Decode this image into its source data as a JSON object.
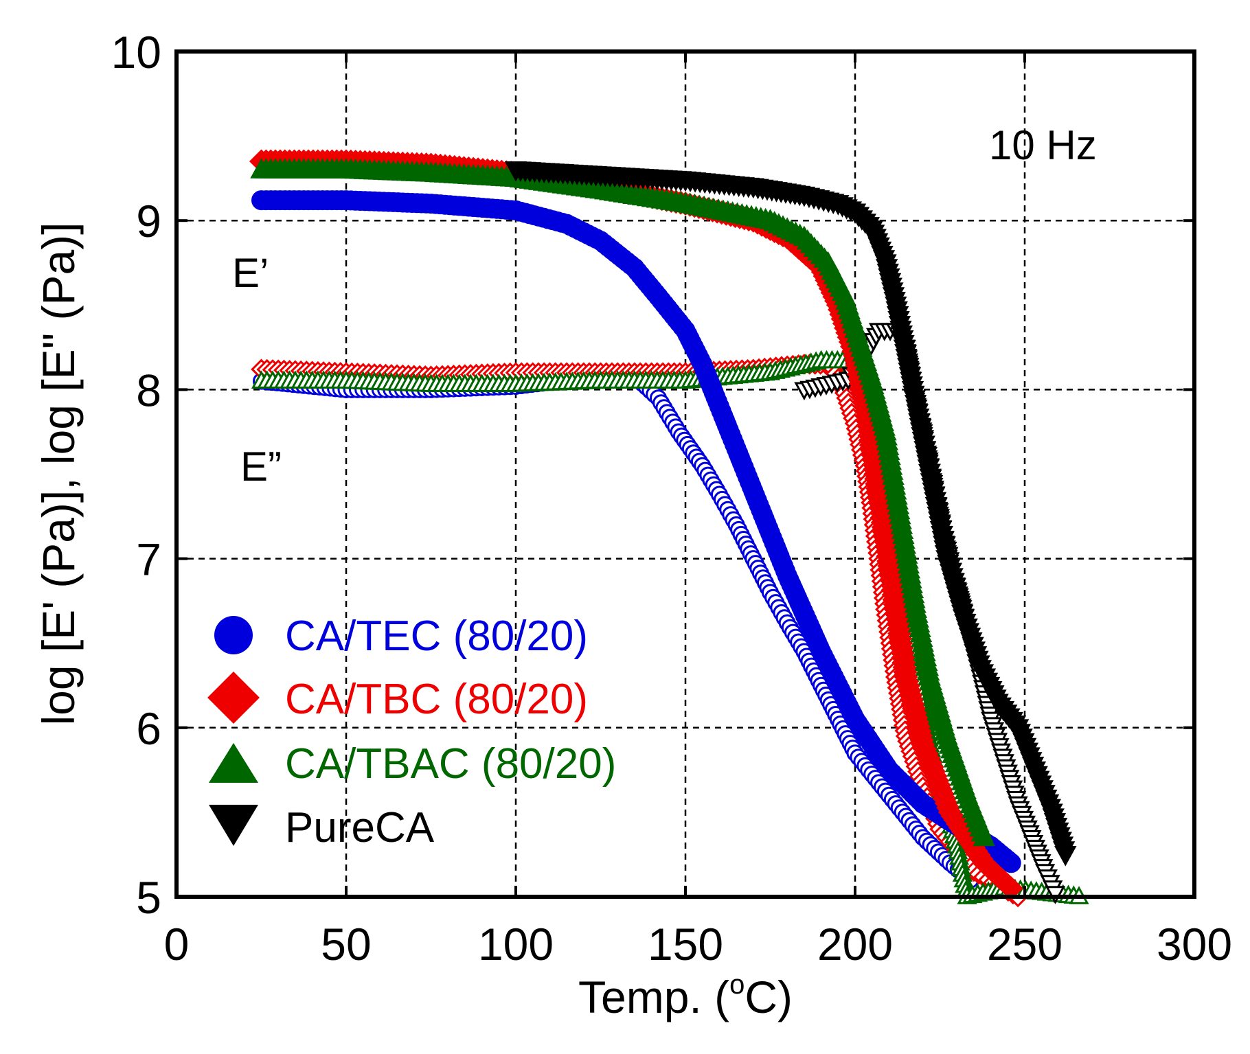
{
  "chart_data": {
    "type": "scatter",
    "title": "",
    "xlabel": "Temp. (",
    "xlabel_sup": "o",
    "xlabel_end": "C)",
    "ylabel": "log [E' (Pa)], log [E\" (Pa)]",
    "xlim": [
      0,
      300
    ],
    "ylim": [
      5,
      10
    ],
    "grid": true,
    "xticks": [
      0,
      50,
      100,
      150,
      200,
      250,
      300
    ],
    "yticks": [
      5,
      6,
      7,
      8,
      9,
      10
    ],
    "xtick_labels": [
      "0",
      "50",
      "100",
      "150",
      "200",
      "250",
      "300"
    ],
    "ytick_labels": [
      "5",
      "6",
      "7",
      "8",
      "9",
      "10"
    ],
    "annotations": [
      {
        "name": "frequency-annotation",
        "text": "10 Hz",
        "x": 260,
        "y": 9.45
      },
      {
        "name": "e-prime-annotation",
        "text": "E’",
        "x": 17,
        "y": 8.68
      },
      {
        "name": "e-double-prime-annotation",
        "text": "E”",
        "x": 19,
        "y": 7.5
      }
    ],
    "legend": {
      "placement": "bottom-left",
      "entries": [
        {
          "label": "CA/TEC (80/20)",
          "color": "#0000dd",
          "marker": "circle"
        },
        {
          "label": "CA/TBC (80/20)",
          "color": "#ee0000",
          "marker": "diamond"
        },
        {
          "label": "CA/TBAC (80/20)",
          "color": "#006600",
          "marker": "triangle-up"
        },
        {
          "label": "PureCA",
          "color": "#000000",
          "marker": "triangle-down"
        }
      ]
    },
    "series": [
      {
        "name": "CA/TEC (80/20) E'",
        "color": "#0000dd",
        "marker": "circle",
        "filled": true,
        "points": [
          [
            25,
            9.12
          ],
          [
            50,
            9.12
          ],
          [
            75,
            9.1
          ],
          [
            100,
            9.06
          ],
          [
            115,
            8.98
          ],
          [
            125,
            8.88
          ],
          [
            135,
            8.72
          ],
          [
            142,
            8.55
          ],
          [
            150,
            8.35
          ],
          [
            155,
            8.15
          ],
          [
            160,
            7.9
          ],
          [
            165,
            7.65
          ],
          [
            170,
            7.4
          ],
          [
            175,
            7.15
          ],
          [
            180,
            6.9
          ],
          [
            190,
            6.45
          ],
          [
            200,
            6.05
          ],
          [
            210,
            5.75
          ],
          [
            220,
            5.55
          ],
          [
            230,
            5.42
          ],
          [
            240,
            5.3
          ],
          [
            246,
            5.2
          ]
        ]
      },
      {
        "name": "CA/TEC (80/20) E\"",
        "color": "#0000dd",
        "marker": "circle",
        "filled": false,
        "points": [
          [
            25,
            8.05
          ],
          [
            50,
            8.0
          ],
          [
            75,
            8.0
          ],
          [
            100,
            8.02
          ],
          [
            125,
            8.08
          ],
          [
            135,
            8.08
          ],
          [
            142,
            7.95
          ],
          [
            148,
            7.75
          ],
          [
            155,
            7.55
          ],
          [
            160,
            7.38
          ],
          [
            165,
            7.2
          ],
          [
            170,
            7.0
          ],
          [
            175,
            6.8
          ],
          [
            180,
            6.62
          ],
          [
            185,
            6.45
          ],
          [
            190,
            6.25
          ],
          [
            195,
            6.05
          ],
          [
            200,
            5.85
          ],
          [
            210,
            5.6
          ],
          [
            220,
            5.35
          ],
          [
            228,
            5.2
          ],
          [
            234,
            5.1
          ]
        ]
      },
      {
        "name": "CA/TBC (80/20) E'",
        "color": "#ee0000",
        "marker": "diamond",
        "filled": true,
        "points": [
          [
            25,
            9.35
          ],
          [
            50,
            9.35
          ],
          [
            75,
            9.33
          ],
          [
            100,
            9.28
          ],
          [
            125,
            9.2
          ],
          [
            150,
            9.1
          ],
          [
            170,
            9.0
          ],
          [
            180,
            8.9
          ],
          [
            190,
            8.72
          ],
          [
            195,
            8.5
          ],
          [
            200,
            8.2
          ],
          [
            203,
            7.9
          ],
          [
            206,
            7.5
          ],
          [
            209,
            7.1
          ],
          [
            212,
            6.7
          ],
          [
            215,
            6.3
          ],
          [
            220,
            5.9
          ],
          [
            228,
            5.5
          ],
          [
            238,
            5.2
          ],
          [
            246,
            5.05
          ]
        ]
      },
      {
        "name": "CA/TBC (80/20) E\"",
        "color": "#ee0000",
        "marker": "diamond",
        "filled": false,
        "points": [
          [
            25,
            8.12
          ],
          [
            50,
            8.1
          ],
          [
            75,
            8.08
          ],
          [
            100,
            8.1
          ],
          [
            125,
            8.1
          ],
          [
            150,
            8.1
          ],
          [
            170,
            8.12
          ],
          [
            185,
            8.15
          ],
          [
            193,
            8.15
          ],
          [
            197,
            7.98
          ],
          [
            200,
            7.8
          ],
          [
            203,
            7.55
          ],
          [
            205,
            7.3
          ],
          [
            207,
            7.0
          ],
          [
            209,
            6.7
          ],
          [
            212,
            6.3
          ],
          [
            215,
            5.95
          ],
          [
            220,
            5.65
          ],
          [
            225,
            5.4
          ],
          [
            235,
            5.15
          ],
          [
            248,
            5.0
          ]
        ]
      },
      {
        "name": "CA/TBAC (80/20) E'",
        "color": "#006600",
        "marker": "triangle-up",
        "filled": true,
        "points": [
          [
            25,
            9.3
          ],
          [
            50,
            9.3
          ],
          [
            75,
            9.28
          ],
          [
            100,
            9.25
          ],
          [
            125,
            9.18
          ],
          [
            150,
            9.1
          ],
          [
            175,
            9.0
          ],
          [
            185,
            8.9
          ],
          [
            192,
            8.75
          ],
          [
            197,
            8.55
          ],
          [
            201,
            8.3
          ],
          [
            205,
            8.05
          ],
          [
            209,
            7.75
          ],
          [
            212,
            7.4
          ],
          [
            215,
            7.05
          ],
          [
            218,
            6.7
          ],
          [
            222,
            6.3
          ],
          [
            227,
            5.95
          ],
          [
            233,
            5.6
          ],
          [
            238,
            5.35
          ]
        ]
      },
      {
        "name": "CA/TBAC (80/20) E\"",
        "color": "#006600",
        "marker": "triangle-up",
        "filled": false,
        "points": [
          [
            25,
            8.05
          ],
          [
            50,
            8.05
          ],
          [
            75,
            8.03
          ],
          [
            100,
            8.03
          ],
          [
            125,
            8.05
          ],
          [
            150,
            8.05
          ],
          [
            175,
            8.1
          ],
          [
            190,
            8.17
          ],
          [
            198,
            8.17
          ],
          [
            202,
            8.05
          ],
          [
            205,
            7.85
          ],
          [
            207,
            7.6
          ],
          [
            210,
            7.3
          ],
          [
            213,
            7.0
          ],
          [
            216,
            6.6
          ],
          [
            219,
            6.25
          ],
          [
            222,
            5.9
          ],
          [
            226,
            5.6
          ],
          [
            230,
            5.3
          ],
          [
            233,
            5.0
          ],
          [
            244,
            5.05
          ],
          [
            266,
            5.0
          ]
        ]
      },
      {
        "name": "PureCA E'",
        "color": "#000000",
        "marker": "triangle-down",
        "filled": true,
        "points": [
          [
            100,
            9.3
          ],
          [
            125,
            9.27
          ],
          [
            150,
            9.24
          ],
          [
            170,
            9.2
          ],
          [
            185,
            9.15
          ],
          [
            195,
            9.1
          ],
          [
            200,
            9.05
          ],
          [
            205,
            8.95
          ],
          [
            209,
            8.75
          ],
          [
            212,
            8.5
          ],
          [
            214,
            8.3
          ],
          [
            217,
            8.0
          ],
          [
            220,
            7.7
          ],
          [
            223,
            7.4
          ],
          [
            227,
            7.0
          ],
          [
            232,
            6.65
          ],
          [
            237,
            6.35
          ],
          [
            242,
            6.15
          ],
          [
            248,
            6.0
          ],
          [
            253,
            5.75
          ],
          [
            258,
            5.5
          ],
          [
            262,
            5.25
          ]
        ]
      },
      {
        "name": "PureCA E\"",
        "color": "#000000",
        "marker": "triangle-down",
        "filled": false,
        "points": [
          [
            185,
            8.0
          ],
          [
            198,
            8.06
          ],
          [
            203,
            8.2
          ],
          [
            207,
            8.35
          ],
          [
            212,
            8.35
          ],
          [
            215,
            8.25
          ],
          [
            217,
            8.0
          ],
          [
            220,
            7.75
          ],
          [
            223,
            7.45
          ],
          [
            226,
            7.15
          ],
          [
            229,
            6.9
          ],
          [
            233,
            6.6
          ],
          [
            237,
            6.3
          ],
          [
            240,
            6.05
          ],
          [
            244,
            5.8
          ],
          [
            248,
            5.55
          ],
          [
            252,
            5.35
          ],
          [
            256,
            5.15
          ],
          [
            259,
            5.02
          ]
        ]
      }
    ]
  }
}
